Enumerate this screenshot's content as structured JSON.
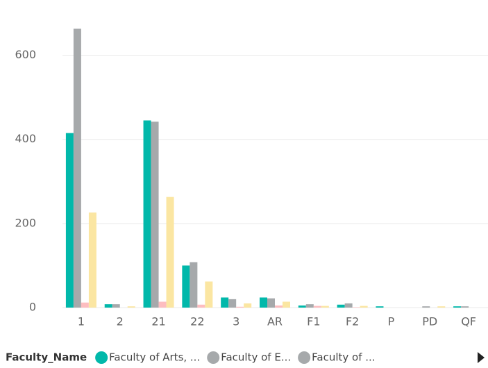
{
  "chart_data": {
    "type": "bar",
    "categories": [
      "1",
      "2",
      "21",
      "22",
      "3",
      "AR",
      "F1",
      "F2",
      "P",
      "PD",
      "QF"
    ],
    "series": [
      {
        "color": "#01B8AA",
        "values": [
          415,
          8,
          445,
          100,
          24,
          24,
          5,
          7,
          3,
          0,
          3
        ]
      },
      {
        "color": "#A6A9AB",
        "values": [
          663,
          8,
          442,
          108,
          20,
          22,
          8,
          10,
          0,
          3,
          3
        ]
      },
      {
        "color": "#FDBDC0",
        "values": [
          12,
          0,
          14,
          7,
          2,
          5,
          4,
          1,
          0,
          0,
          0
        ]
      },
      {
        "color": "#FBE6A2",
        "values": [
          226,
          3,
          263,
          62,
          10,
          14,
          4,
          4,
          0,
          3,
          0
        ]
      }
    ],
    "ylim": [
      0,
      700
    ],
    "yticks": [
      0,
      200,
      400,
      600
    ],
    "grid": true,
    "legend": {
      "title": "Faculty_Name",
      "items": [
        {
          "label": "Faculty of Arts, ...",
          "color": "#01B8AA"
        },
        {
          "label": "Faculty of E...",
          "color": "#A6A9AB"
        },
        {
          "label": "Faculty of ...",
          "color": "#A6A9AB"
        }
      ]
    }
  }
}
